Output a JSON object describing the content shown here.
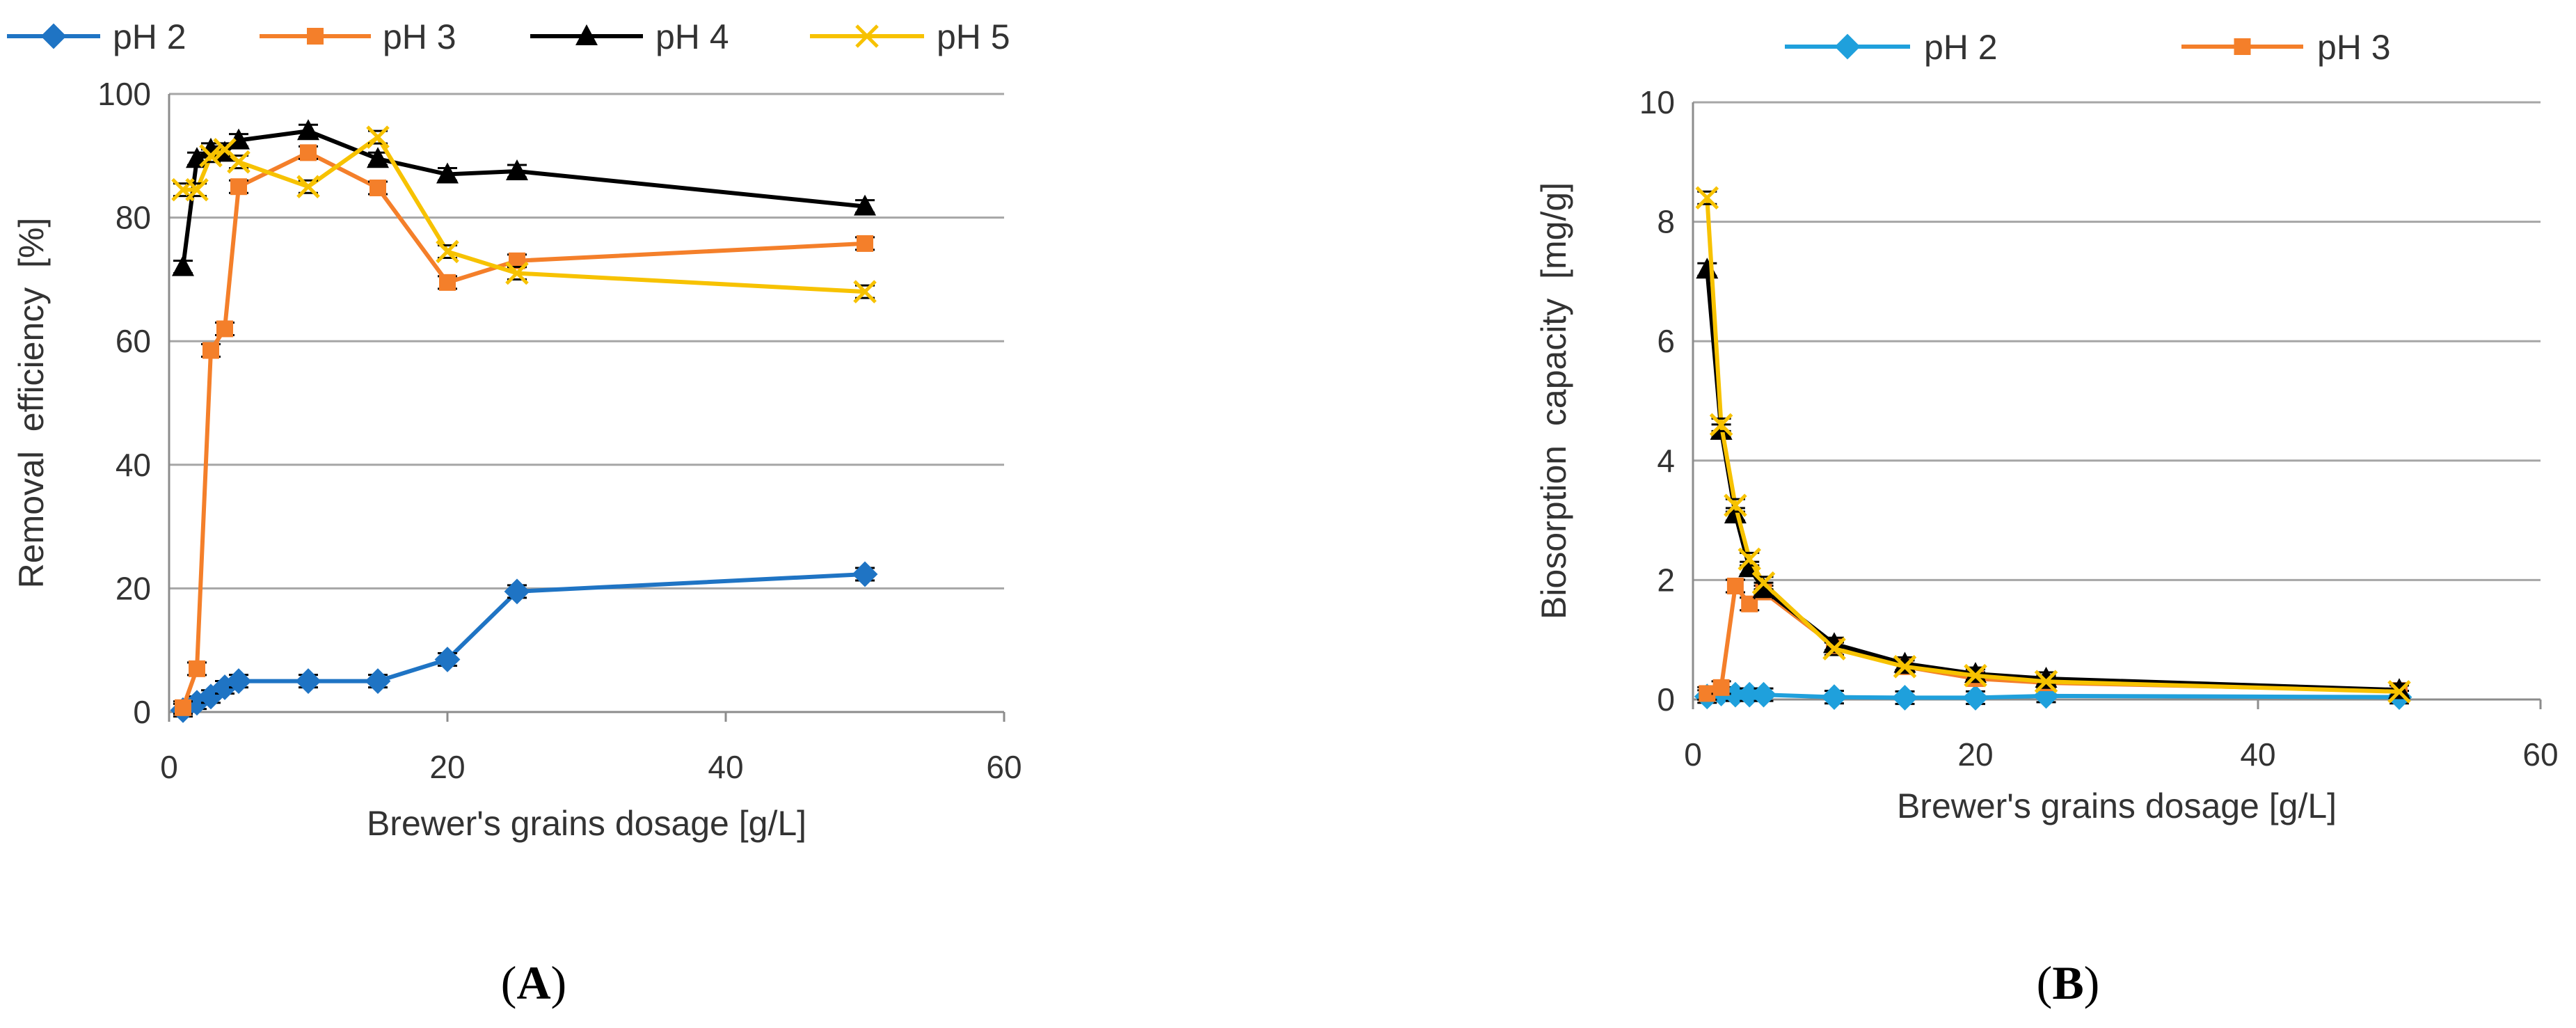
{
  "colors": {
    "pH 2": "#1f74c4",
    "pH 3": "#f47f2a",
    "pH 4": "#000000",
    "pH 5": "#f7c200",
    "pH 2 panel B": "#1fa0dc",
    "grid": "#a6a6a6",
    "axis": "#8c8c8c"
  },
  "chart_data": [
    {
      "id": "A",
      "type": "line",
      "panel_label": "A",
      "xlabel": "Brewer's grains dosage [g/L]",
      "ylabel": "Removal  efficiency  [%]",
      "xlim": [
        0,
        60
      ],
      "ylim": [
        0,
        100
      ],
      "xticks": [
        "0",
        "20",
        "40",
        "60"
      ],
      "yticks": [
        "0",
        "20",
        "40",
        "60",
        "80",
        "100"
      ],
      "grid": "horizontal",
      "legend": "top",
      "legend_entries": [
        "pH 2",
        "pH 3",
        "pH 4",
        "pH 5"
      ],
      "series": [
        {
          "name": "pH 2",
          "marker": "diamond",
          "x": [
            1,
            2,
            3,
            4,
            5,
            10,
            15,
            20,
            25,
            50
          ],
          "y": [
            0.3,
            1.5,
            2.5,
            4.0,
            5.0,
            5.0,
            5.0,
            8.5,
            19.5,
            22.3
          ]
        },
        {
          "name": "pH 3",
          "marker": "square",
          "x": [
            1,
            2,
            3,
            4,
            5,
            10,
            15,
            20,
            25,
            50
          ],
          "y": [
            0.7,
            7.0,
            58.5,
            62.0,
            85.0,
            90.5,
            84.8,
            69.5,
            73.0,
            75.8
          ]
        },
        {
          "name": "pH 4",
          "marker": "triangle",
          "x": [
            1,
            2,
            3,
            4,
            5,
            10,
            15,
            20,
            25,
            50
          ],
          "y": [
            72.0,
            89.5,
            91.0,
            90.5,
            92.5,
            94.0,
            89.5,
            87.0,
            87.5,
            81.8
          ]
        },
        {
          "name": "pH 5",
          "marker": "x",
          "x": [
            1,
            2,
            3,
            4,
            5,
            10,
            15,
            20,
            25,
            50
          ],
          "y": [
            84.5,
            84.5,
            90.0,
            91.0,
            89.0,
            85.0,
            93.0,
            74.5,
            71.0,
            68.0
          ]
        }
      ]
    },
    {
      "id": "B",
      "type": "line",
      "panel_label": "B",
      "xlabel": "Brewer's grains dosage [g/L]",
      "ylabel": "Biosorption  capacity  [mg/g]",
      "xlim": [
        0,
        60
      ],
      "ylim": [
        0,
        10
      ],
      "xticks": [
        "0",
        "20",
        "40",
        "60"
      ],
      "yticks": [
        "0",
        "2",
        "4",
        "6",
        "8",
        "10"
      ],
      "grid": "horizontal",
      "legend": "top",
      "legend_entries": [
        "pH 2",
        "pH 3"
      ],
      "series": [
        {
          "name": "pH 2",
          "marker": "diamond",
          "x": [
            1,
            2,
            3,
            4,
            5,
            10,
            15,
            20,
            25,
            50
          ],
          "y": [
            0.05,
            0.1,
            0.08,
            0.08,
            0.08,
            0.04,
            0.03,
            0.03,
            0.06,
            0.04
          ]
        },
        {
          "name": "pH 3",
          "marker": "square",
          "x": [
            1,
            2,
            3,
            4,
            5,
            10,
            15,
            20,
            25,
            50
          ],
          "y": [
            0.1,
            0.2,
            1.9,
            1.6,
            1.8,
            0.9,
            0.55,
            0.35,
            0.28,
            0.15
          ]
        },
        {
          "name": "pH 4",
          "marker": "triangle",
          "x": [
            1,
            2,
            3,
            4,
            5,
            10,
            15,
            20,
            25,
            50
          ],
          "y": [
            7.2,
            4.5,
            3.1,
            2.2,
            1.85,
            0.93,
            0.6,
            0.43,
            0.35,
            0.16
          ]
        },
        {
          "name": "pH 5",
          "marker": "x",
          "x": [
            1,
            2,
            3,
            4,
            5,
            10,
            15,
            20,
            25,
            50
          ],
          "y": [
            8.4,
            4.6,
            3.25,
            2.35,
            1.95,
            0.85,
            0.55,
            0.4,
            0.3,
            0.13
          ]
        }
      ]
    }
  ]
}
